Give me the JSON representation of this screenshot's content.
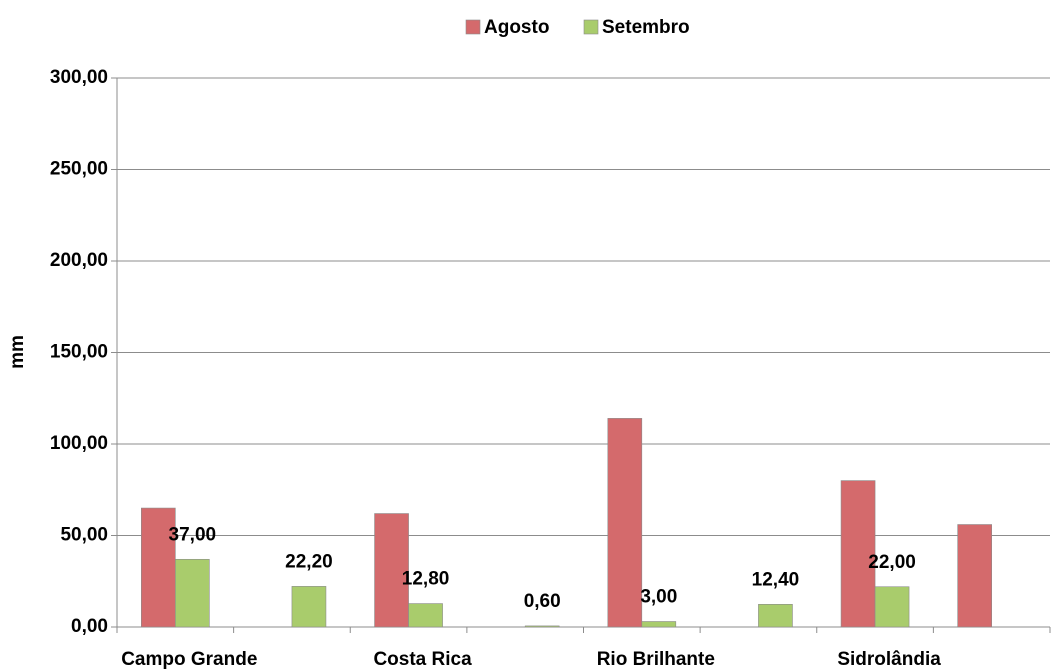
{
  "chart_data": {
    "type": "bar",
    "y_label": "mm",
    "categories": [
      "Campo Grande",
      null,
      "Costa Rica",
      null,
      "Rio Brilhante",
      null,
      "Sidrolândia",
      null
    ],
    "series": [
      {
        "name": "Agosto",
        "color": "#d46a6c",
        "values": [
          65,
          null,
          62,
          null,
          114,
          null,
          80,
          56
        ]
      },
      {
        "name": "Setembro",
        "color": "#a9cc6c",
        "values": [
          37,
          22.2,
          12.8,
          0.6,
          3,
          12.4,
          22,
          null
        ],
        "value_labels": [
          "37,00",
          "22,20",
          "12,80",
          "0,60",
          "3,00",
          "12,40",
          "22,00",
          null
        ]
      }
    ],
    "ylim": [
      0,
      300
    ],
    "yticks": [
      {
        "value": 0,
        "label": "0,00"
      },
      {
        "value": 50,
        "label": "50,00"
      },
      {
        "value": 100,
        "label": "100,00"
      },
      {
        "value": 150,
        "label": "150,00"
      },
      {
        "value": 200,
        "label": "200,00"
      },
      {
        "value": 250,
        "label": "250,00"
      },
      {
        "value": 300,
        "label": "300,00"
      }
    ],
    "grid": true,
    "legend": "top"
  }
}
